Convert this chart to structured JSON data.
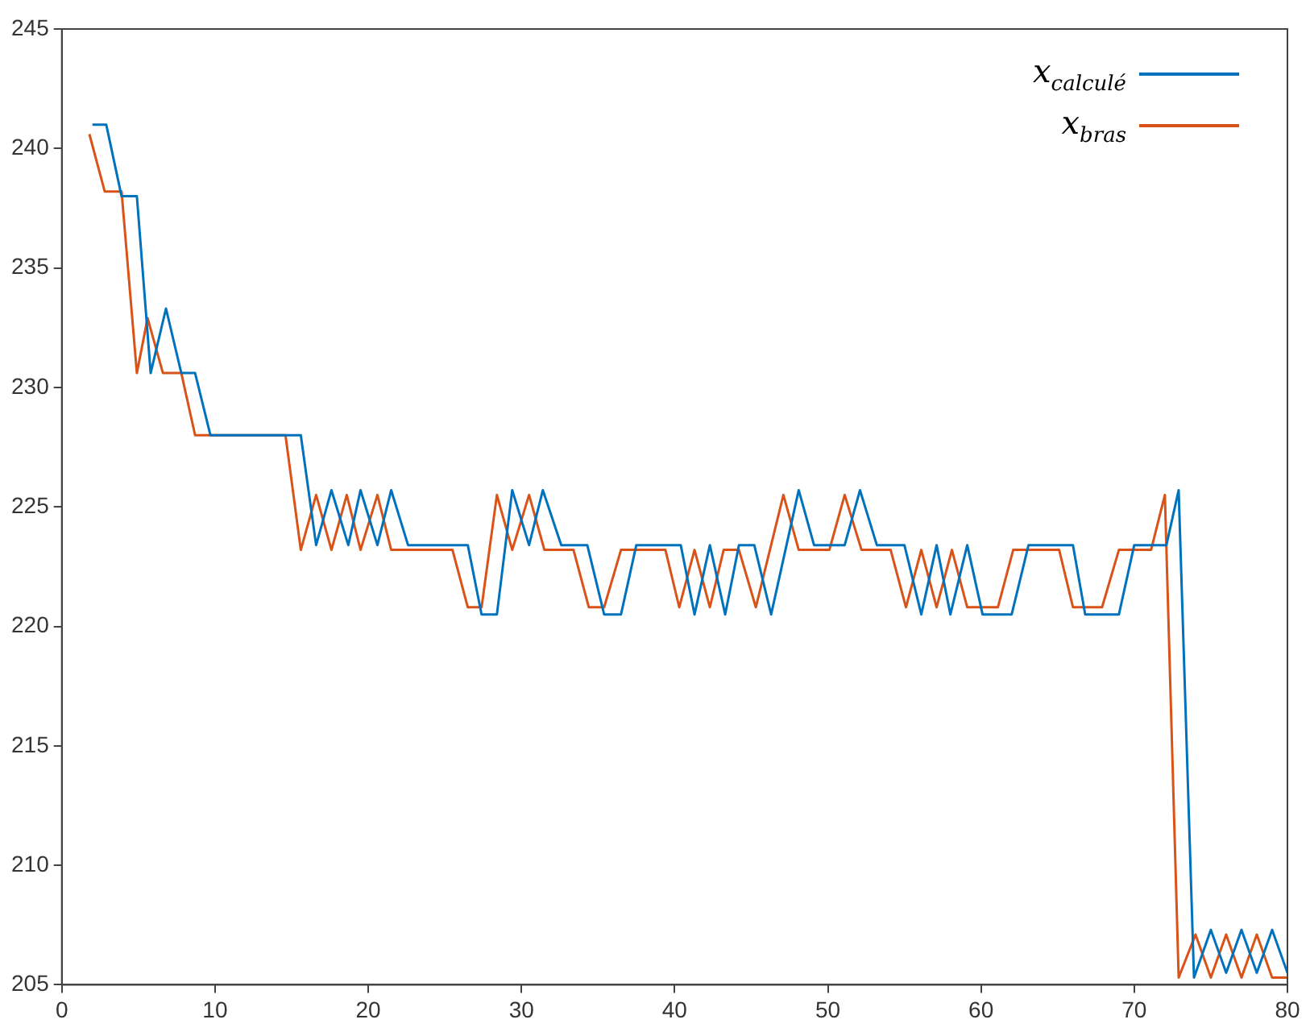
{
  "chart_data": {
    "type": "line",
    "xlim": [
      0,
      80
    ],
    "xticks": [
      0,
      10,
      20,
      30,
      40,
      50,
      60,
      70,
      80
    ],
    "ylim": [
      205,
      245
    ],
    "yticks": [
      205,
      210,
      215,
      220,
      225,
      230,
      235,
      240,
      245
    ],
    "legend": "top right",
    "grid": false,
    "marker": "none",
    "line_style": "solid",
    "series": [
      {
        "name": "x$_{calculé}$",
        "color": "#0072bd",
        "x": [
          2,
          2.9,
          3.9,
          4.9,
          5.8,
          6.8,
          7.8,
          8.7,
          9.7,
          15.6,
          16.6,
          17.6,
          18.7,
          19.5,
          20.6,
          21.5,
          22.6,
          26.5,
          27.4,
          28.4,
          29.4,
          30.5,
          31.4,
          32.6,
          34.3,
          35.4,
          36.5,
          37.5,
          40.4,
          41.3,
          42.3,
          43.3,
          44.2,
          45.2,
          46.3,
          48.1,
          49.1,
          51.1,
          52.1,
          53.2,
          55,
          56.1,
          57.1,
          58,
          59.1,
          60.1,
          62,
          63.1,
          66,
          66.8,
          69,
          70,
          72.1,
          72.9,
          73.9,
          75,
          76,
          77,
          78,
          79,
          80
        ],
        "values": [
          241,
          241,
          238,
          238,
          230.6,
          233.3,
          230.6,
          230.6,
          228,
          228,
          223.4,
          225.7,
          223.4,
          225.7,
          223.4,
          225.7,
          223.4,
          223.4,
          220.5,
          220.5,
          225.7,
          223.4,
          225.7,
          223.4,
          223.4,
          220.5,
          220.5,
          223.4,
          223.4,
          220.5,
          223.4,
          220.5,
          223.4,
          223.4,
          220.5,
          225.7,
          223.4,
          223.4,
          225.7,
          223.4,
          223.4,
          220.5,
          223.4,
          220.5,
          223.4,
          220.5,
          220.5,
          223.4,
          223.4,
          220.5,
          220.5,
          223.4,
          223.4,
          225.7,
          205.3,
          207.3,
          205.5,
          207.3,
          205.5,
          207.3,
          205.5
        ]
      },
      {
        "name": "x$_{bras}$",
        "color": "#d95319",
        "x": [
          1.8,
          2.8,
          3.9,
          4.9,
          5.6,
          6.6,
          7.8,
          8.7,
          14.6,
          15.6,
          16.6,
          17.6,
          18.6,
          19.5,
          20.6,
          21.5,
          25.5,
          26.5,
          27.4,
          28.4,
          29.4,
          30.5,
          31.5,
          33.4,
          34.4,
          35.4,
          36.5,
          39.4,
          40.3,
          41.3,
          42.3,
          43.2,
          44.2,
          45.3,
          47.1,
          48.1,
          50.1,
          51.1,
          52.2,
          54.1,
          55.1,
          56.1,
          57.1,
          58.1,
          59.1,
          61.1,
          62.1,
          65.1,
          66,
          67.9,
          69,
          71.1,
          72,
          72.9,
          74,
          75,
          76,
          77,
          78,
          79,
          80
        ],
        "values": [
          240.6,
          238.2,
          238.2,
          230.6,
          232.9,
          230.6,
          230.6,
          228,
          228,
          223.2,
          225.5,
          223.2,
          225.5,
          223.2,
          225.5,
          223.2,
          223.2,
          220.8,
          220.8,
          225.5,
          223.2,
          225.5,
          223.2,
          223.2,
          220.8,
          220.8,
          223.2,
          223.2,
          220.8,
          223.2,
          220.8,
          223.2,
          223.2,
          220.8,
          225.5,
          223.2,
          223.2,
          225.5,
          223.2,
          223.2,
          220.8,
          223.2,
          220.8,
          223.2,
          220.8,
          220.8,
          223.2,
          223.2,
          220.8,
          220.8,
          223.2,
          223.2,
          225.5,
          205.3,
          207.1,
          205.3,
          207.1,
          205.3,
          207.1,
          205.3,
          205.3
        ]
      }
    ]
  }
}
